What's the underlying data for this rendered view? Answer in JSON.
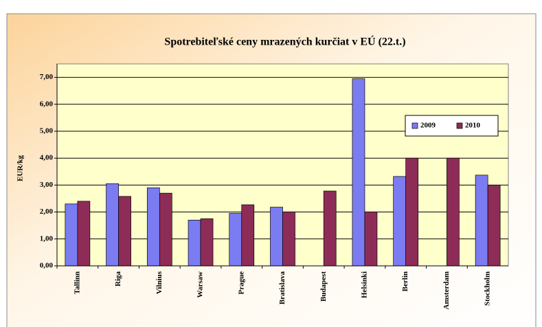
{
  "chart_data": {
    "type": "bar",
    "title": "Spotrebiteľské ceny mrazených kurčiat v EÚ (22.t.)",
    "ylabel": "EUR/kg",
    "categories": [
      "Tallinn",
      "Riga",
      "Vilnius",
      "Warsaw",
      "Prague",
      "Bratislava",
      "Budapest",
      "Helsinki",
      "Berlin",
      "Amsterdam",
      "Stockholm"
    ],
    "series": [
      {
        "name": "2009",
        "color": "#7b7bf2",
        "values": [
          2.3,
          3.05,
          2.9,
          1.7,
          1.95,
          2.18,
          null,
          6.95,
          3.32,
          null,
          3.37
        ]
      },
      {
        "name": "2010",
        "color": "#8e2c58",
        "values": [
          2.4,
          2.58,
          2.7,
          1.75,
          2.27,
          2.0,
          2.78,
          2.0,
          4.0,
          4.0,
          3.0
        ]
      }
    ],
    "ylim": [
      0,
      7.5
    ],
    "yticks": [
      {
        "value": 0,
        "label": "0,00"
      },
      {
        "value": 1,
        "label": "1,00"
      },
      {
        "value": 2,
        "label": "2,00"
      },
      {
        "value": 3,
        "label": "3,00"
      },
      {
        "value": 4,
        "label": "4,00"
      },
      {
        "value": 5,
        "label": "5,00"
      },
      {
        "value": 6,
        "label": "6,00"
      },
      {
        "value": 7,
        "label": "7,00"
      }
    ],
    "grid": true,
    "legend": "upper right"
  }
}
